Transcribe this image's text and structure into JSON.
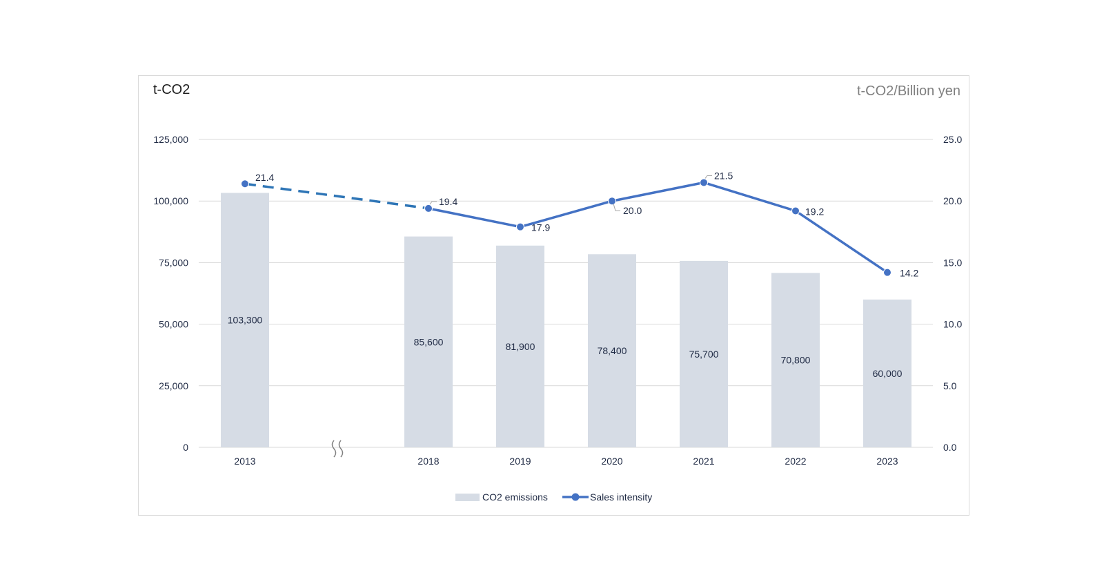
{
  "chart_data": {
    "type": "bar",
    "categories": [
      "2013",
      "2018",
      "2019",
      "2020",
      "2021",
      "2022",
      "2023"
    ],
    "series": [
      {
        "name": "CO2 emissions",
        "kind": "bar",
        "axis": "left",
        "values": [
          103300,
          85600,
          81900,
          78400,
          75700,
          70800,
          60000
        ],
        "labels": [
          "103,300",
          "85,600",
          "81,900",
          "78,400",
          "75,700",
          "70,800",
          "60,000"
        ],
        "color": "#d6dce5"
      },
      {
        "name": "Sales intensity",
        "kind": "line",
        "axis": "right",
        "values": [
          21.4,
          19.4,
          17.9,
          20.0,
          21.5,
          19.2,
          14.2
        ],
        "labels": [
          "21.4",
          "19.4",
          "17.9",
          "20.0",
          "21.5",
          "19.2",
          "14.2"
        ],
        "color": "#4472c4",
        "dashed_segment": [
          "2013",
          "2018"
        ]
      }
    ],
    "axis_break_between": [
      "2013",
      "2018"
    ],
    "y_left": {
      "title": "t-CO2",
      "range": [
        0,
        125000
      ],
      "ticks": [
        "0",
        "25,000",
        "50,000",
        "75,000",
        "100,000",
        "125,000"
      ]
    },
    "y_right": {
      "title": "t-CO2/Billion yen",
      "range": [
        0,
        25
      ],
      "ticks": [
        "0.0",
        "5.0",
        "10.0",
        "15.0",
        "20.0",
        "25.0"
      ]
    },
    "grid": true,
    "legend": {
      "position": "bottom",
      "items": [
        "CO2 emissions",
        "Sales intensity"
      ]
    }
  }
}
